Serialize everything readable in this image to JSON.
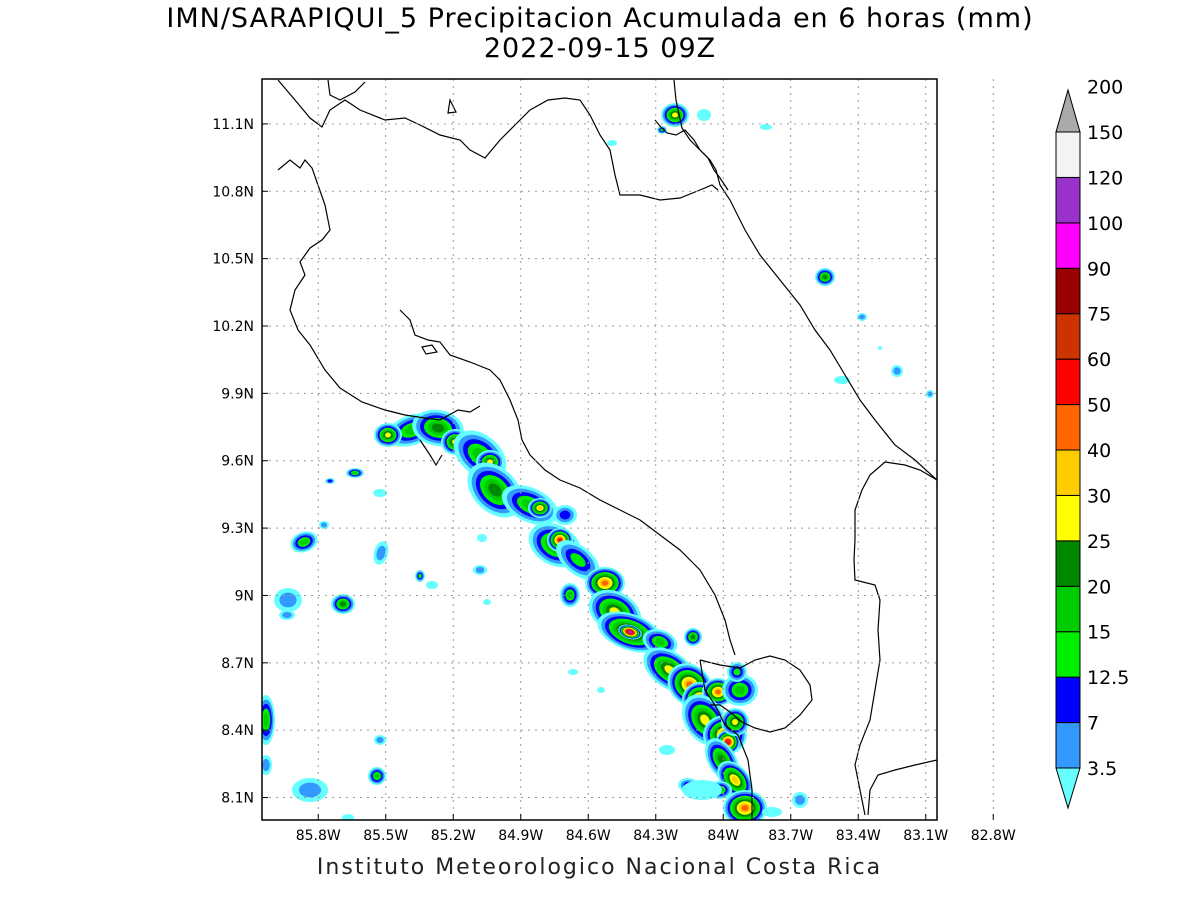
{
  "title": {
    "line1": "IMN/SARAPIQUI_5 Precipitacion Acumulada en 6 horas (mm)",
    "line2": "2022-09-15 09Z"
  },
  "credit": "Instituto Meteorologico Nacional Costa Rica",
  "map": {
    "lon_range": [
      -86.05,
      -83.05
    ],
    "lat_range": [
      8.0,
      11.3
    ],
    "x_ticks": [
      {
        "lon": -85.8,
        "label": "85.8W"
      },
      {
        "lon": -85.5,
        "label": "85.5W"
      },
      {
        "lon": -85.2,
        "label": "85.2W"
      },
      {
        "lon": -84.9,
        "label": "84.9W"
      },
      {
        "lon": -84.6,
        "label": "84.6W"
      },
      {
        "lon": -84.3,
        "label": "84.3W"
      },
      {
        "lon": -84.0,
        "label": "84W"
      },
      {
        "lon": -83.7,
        "label": "83.7W"
      },
      {
        "lon": -83.4,
        "label": "83.4W"
      },
      {
        "lon": -83.1,
        "label": "83.1W"
      },
      {
        "lon": -82.8,
        "label": "82.8W"
      }
    ],
    "y_ticks": [
      {
        "lat": 11.1,
        "label": "11.1N"
      },
      {
        "lat": 10.8,
        "label": "10.8N"
      },
      {
        "lat": 10.5,
        "label": "10.5N"
      },
      {
        "lat": 10.2,
        "label": "10.2N"
      },
      {
        "lat": 9.9,
        "label": "9.9N"
      },
      {
        "lat": 9.6,
        "label": "9.6N"
      },
      {
        "lat": 9.3,
        "label": "9.3N"
      },
      {
        "lat": 9.0,
        "label": "9N"
      },
      {
        "lat": 8.7,
        "label": "8.7N"
      },
      {
        "lat": 8.4,
        "label": "8.4N"
      },
      {
        "lat": 8.1,
        "label": "8.1N"
      }
    ],
    "grid": true
  },
  "legend": {
    "labels": [
      "3.5",
      "7",
      "12.5",
      "15",
      "20",
      "25",
      "30",
      "40",
      "50",
      "60",
      "75",
      "90",
      "100",
      "120",
      "150",
      "200"
    ],
    "colors": [
      "#66ffff",
      "#3399ff",
      "#0000ff",
      "#00ee00",
      "#00cc00",
      "#008800",
      "#ffff00",
      "#ffcc00",
      "#ff6600",
      "#ff0000",
      "#cc3300",
      "#990000",
      "#ff00ff",
      "#9933cc",
      "#f4f4f4",
      "#aaaaaa"
    ]
  }
}
